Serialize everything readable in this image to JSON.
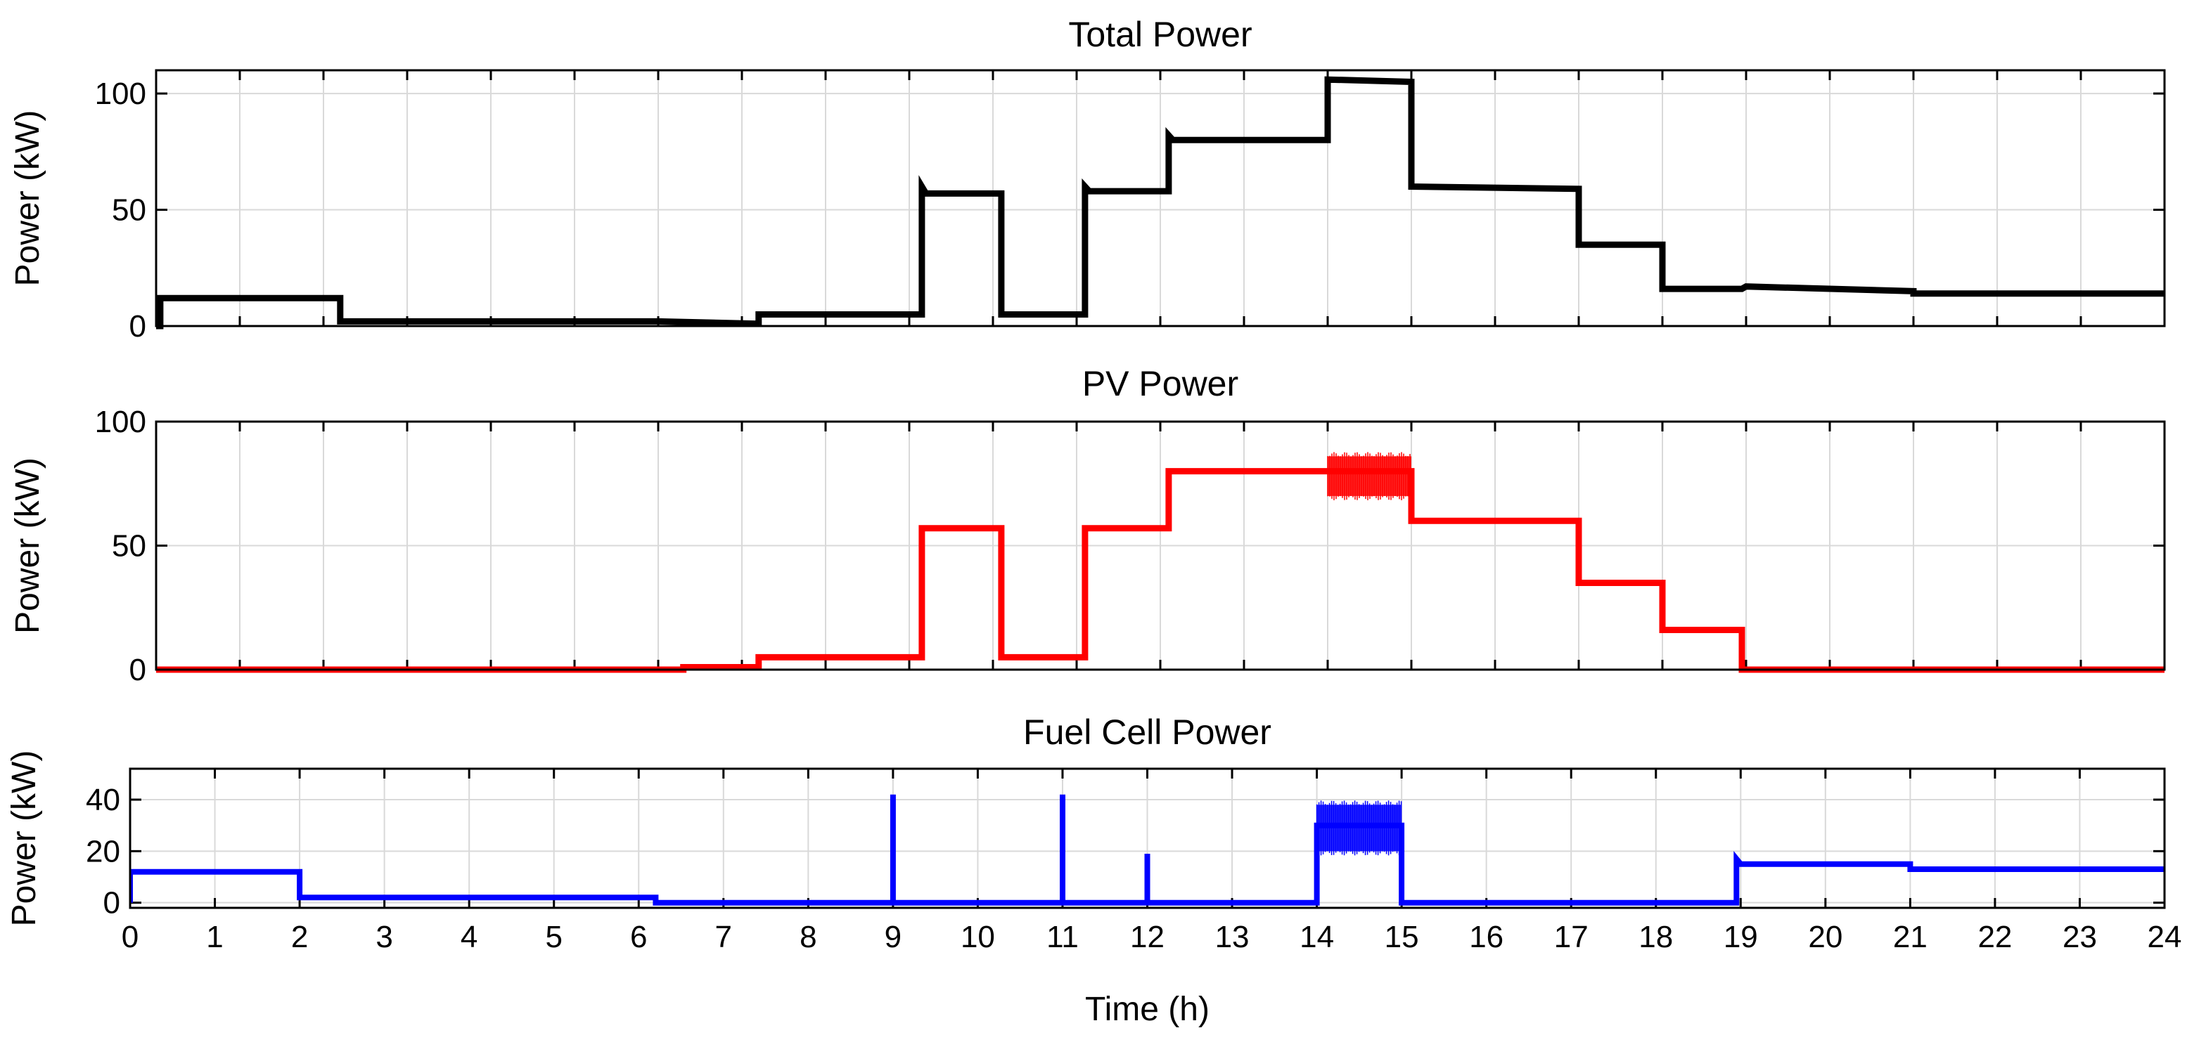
{
  "chart_data": [
    {
      "type": "line",
      "title": "Total Power",
      "xlabel": "",
      "ylabel": "Power (kW)",
      "xlim": [
        0,
        24
      ],
      "ylim": [
        0,
        110
      ],
      "yticks": [
        0,
        50,
        100
      ],
      "grid": true,
      "series": [
        {
          "name": "Total Power",
          "color": "#000000",
          "x": [
            0,
            0.05,
            0.05,
            2.2,
            2.2,
            6.0,
            7.2,
            7.2,
            9.15,
            9.15,
            9.2,
            10.1,
            10.1,
            11.1,
            11.1,
            11.15,
            12.1,
            12.1,
            12.15,
            14.0,
            14.0,
            15.0,
            15.0,
            17.0,
            17.0,
            18.0,
            18.0,
            18.95,
            19.0,
            21.0,
            21.0,
            24.0
          ],
          "y": [
            0,
            0,
            12,
            12,
            2,
            2,
            1,
            5,
            5,
            60,
            57,
            57,
            5,
            5,
            60,
            58,
            58,
            82,
            80,
            80,
            106,
            105,
            60,
            59,
            35,
            35,
            16,
            16,
            17,
            15,
            14,
            14
          ]
        }
      ]
    },
    {
      "type": "line",
      "title": "PV Power",
      "xlabel": "",
      "ylabel": "Power (kW)",
      "xlim": [
        0,
        24
      ],
      "ylim": [
        0,
        100
      ],
      "yticks": [
        0,
        50,
        100
      ],
      "grid": true,
      "series": [
        {
          "name": "PV Power",
          "color": "#ff0000",
          "x": [
            0,
            6.3,
            6.3,
            7.2,
            7.2,
            9.15,
            9.15,
            10.1,
            10.1,
            11.1,
            11.1,
            12.1,
            12.1,
            14.0,
            14.0,
            15.0,
            15.0,
            17.0,
            17.0,
            18.0,
            18.0,
            18.95,
            18.95,
            24.0
          ],
          "y": [
            0,
            0,
            1,
            1,
            5,
            5,
            57,
            57,
            5,
            5,
            57,
            57,
            80,
            80,
            80,
            80,
            60,
            60,
            35,
            35,
            16,
            16,
            0,
            0
          ]
        }
      ],
      "oscillation": {
        "x": [
          14.0,
          15.0
        ],
        "y": [
          70,
          86
        ]
      }
    },
    {
      "type": "line",
      "title": "Fuel Cell Power",
      "xlabel": "Time (h)",
      "ylabel": "Power (kW)",
      "xlim": [
        0,
        24
      ],
      "ylim": [
        -2,
        52
      ],
      "yticks": [
        0,
        20,
        40
      ],
      "xticks": [
        0,
        1,
        2,
        3,
        4,
        5,
        6,
        7,
        8,
        9,
        10,
        11,
        12,
        13,
        14,
        15,
        16,
        17,
        18,
        19,
        20,
        21,
        22,
        23,
        24
      ],
      "grid": true,
      "series": [
        {
          "name": "Fuel Cell Power",
          "color": "#0000ff",
          "x": [
            0,
            0,
            2.0,
            2.0,
            6.2,
            6.2,
            9.0,
            9.0,
            9.0,
            11.0,
            11.0,
            11.0,
            12.0,
            12.0,
            12.0,
            14.0,
            14.0,
            15.0,
            15.0,
            18.95,
            18.95,
            19.0,
            21.0,
            21.0,
            24.0
          ],
          "y": [
            0,
            12,
            12,
            2,
            2,
            0,
            0,
            42,
            0,
            0,
            42,
            0,
            0,
            19,
            0,
            0,
            30,
            30,
            0,
            0,
            17,
            15,
            15,
            13,
            13
          ]
        }
      ],
      "oscillation": {
        "x": [
          14.0,
          15.0
        ],
        "y": [
          20,
          38
        ]
      }
    }
  ]
}
